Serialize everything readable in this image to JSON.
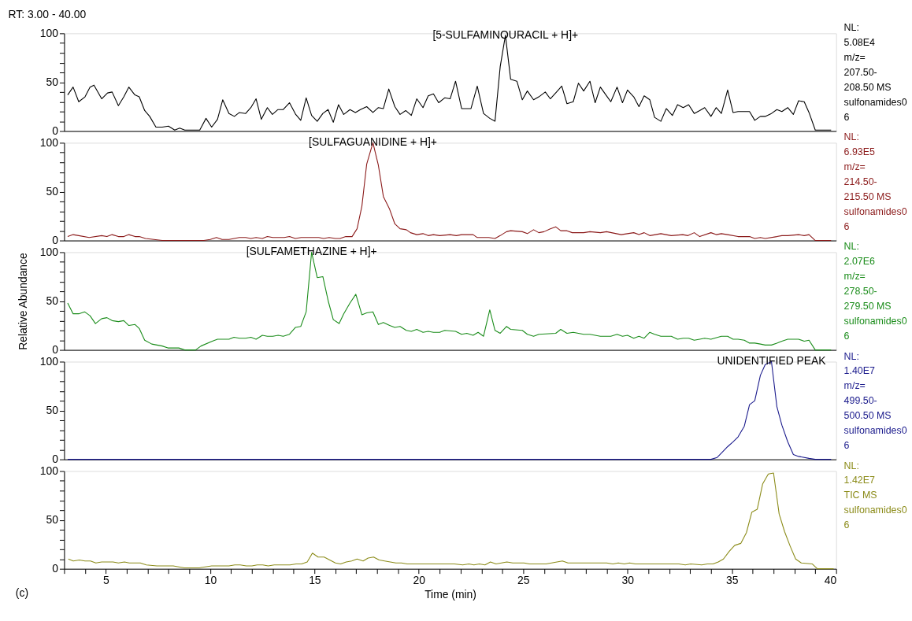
{
  "chart_data": [
    {
      "type": "line",
      "title": "RT: 3.00 - 40.00",
      "xlim": [
        3,
        40
      ],
      "ylim": [
        0,
        100
      ],
      "tick_labels": "y",
      "yticks": [
        0,
        {
          "value": 10,
          "label": null
        },
        {
          "value": 20,
          "label": null
        },
        {
          "value": 30,
          "label": null
        },
        {
          "value": 40,
          "label": null
        },
        50,
        {
          "value": 60,
          "label": null
        },
        {
          "value": 70,
          "label": null
        },
        {
          "value": 80,
          "label": null
        },
        {
          "value": 90,
          "label": null
        },
        100
      ],
      "annotations": [
        {
          "text": "[5-SULFAMINOURACIL + H]+",
          "x": 24.15,
          "y": 98
        },
        "NL:",
        "5.08E4",
        "m/z=",
        "207.50-",
        "208.50  MS",
        "sulfonamides0",
        "6"
      ],
      "series": [
        {
          "color": "#000000",
          "x": [
            3.17,
            3.43,
            3.7,
            4.0,
            4.24,
            4.43,
            4.8,
            5.08,
            5.3,
            5.6,
            5.86,
            6.1,
            6.39,
            6.6,
            6.86,
            7.1,
            7.4,
            7.7,
            8.0,
            8.3,
            8.54,
            8.78,
            9.5,
            9.8,
            10.07,
            10.35,
            10.6,
            10.9,
            11.16,
            11.4,
            11.7,
            11.95,
            12.2,
            12.45,
            12.74,
            12.98,
            13.25,
            13.5,
            13.8,
            14.1,
            14.34,
            14.6,
            14.86,
            15.13,
            15.4,
            15.65,
            15.9,
            16.15,
            16.4,
            16.7,
            16.96,
            17.2,
            17.5,
            17.8,
            18.06,
            18.3,
            18.56,
            18.85,
            19.1,
            19.37,
            19.64,
            19.9,
            20.2,
            20.45,
            20.7,
            20.95,
            21.24,
            21.5,
            21.76,
            22.05,
            22.5,
            22.8,
            23.1,
            23.4,
            23.65,
            23.9,
            24.15,
            24.4,
            24.7,
            24.96,
            25.2,
            25.5,
            25.75,
            26.06,
            26.3,
            26.6,
            26.85,
            27.1,
            27.4,
            27.65,
            27.9,
            28.2,
            28.45,
            28.7,
            29.0,
            29.2,
            29.5,
            29.76,
            30.0,
            30.3,
            30.55,
            30.8,
            31.07,
            31.3,
            31.6,
            31.86,
            32.15,
            32.4,
            32.67,
            32.93,
            33.2,
            33.46,
            33.7,
            34.0,
            34.25,
            34.5,
            34.8,
            35.06,
            35.3,
            35.85,
            36.1,
            36.37,
            36.6,
            36.9,
            37.16,
            37.4,
            37.68,
            37.95,
            38.2,
            38.47,
            38.7,
            39.0,
            39.6,
            39.76
          ],
          "values": [
            37,
            45,
            30,
            35,
            45,
            47,
            33,
            39,
            40,
            26,
            35,
            45,
            37,
            35,
            21,
            15,
            4,
            4,
            5,
            1,
            3,
            1,
            1,
            13,
            4,
            12,
            32,
            18,
            15,
            19,
            18,
            24,
            33,
            12,
            24,
            17,
            22,
            22,
            29,
            17,
            11,
            34,
            16,
            10,
            18,
            22,
            9,
            27,
            17,
            22,
            19,
            22,
            25,
            19,
            24,
            23,
            43,
            25,
            17,
            21,
            16,
            33,
            24,
            36,
            38,
            29,
            34,
            33,
            51,
            23,
            23,
            46,
            18,
            13,
            10,
            66,
            98,
            53,
            51,
            32,
            41,
            32,
            35,
            40,
            33,
            40,
            46,
            28,
            30,
            49,
            41,
            51,
            29,
            45,
            36,
            30,
            45,
            29,
            42,
            35,
            25,
            36,
            32,
            14,
            10,
            23,
            16,
            27,
            24,
            27,
            18,
            21,
            24,
            15,
            24,
            18,
            42,
            19,
            20,
            20,
            11,
            15,
            15,
            18,
            22,
            20,
            24,
            17,
            31,
            30,
            19,
            1,
            1,
            1
          ]
        }
      ]
    },
    {
      "type": "line",
      "xlim": [
        3,
        40
      ],
      "ylim": [
        0,
        100
      ],
      "tick_labels": "y",
      "yticks": [
        0,
        {
          "value": 10,
          "label": null
        },
        {
          "value": 20,
          "label": null
        },
        {
          "value": 30,
          "label": null
        },
        {
          "value": 40,
          "label": null
        },
        50,
        {
          "value": 60,
          "label": null
        },
        {
          "value": 70,
          "label": null
        },
        {
          "value": 80,
          "label": null
        },
        {
          "value": 90,
          "label": null
        },
        100
      ],
      "annotations": [
        {
          "text": "[SULFAGUANIDINE + H]+",
          "x": 17.8,
          "y": 100
        },
        "NL:",
        "6.93E5",
        "m/z=",
        "214.50-",
        "215.50  MS",
        "sulfonamides0",
        "6"
      ],
      "series": [
        {
          "color": "#8b1a1a",
          "x": [
            3.17,
            3.43,
            3.7,
            4.2,
            4.8,
            5.05,
            5.3,
            5.6,
            5.86,
            6.1,
            6.4,
            6.6,
            6.9,
            7.3,
            7.7,
            9.7,
            10.0,
            10.3,
            10.57,
            10.9,
            11.4,
            11.7,
            11.95,
            12.2,
            12.5,
            12.74,
            13.0,
            13.55,
            13.8,
            14.08,
            14.36,
            15.2,
            15.44,
            15.7,
            16.0,
            16.22,
            16.5,
            16.8,
            17.04,
            17.27,
            17.5,
            17.8,
            18.06,
            18.3,
            18.6,
            18.85,
            19.1,
            19.4,
            19.6,
            19.9,
            20.2,
            20.45,
            20.7,
            21.0,
            21.5,
            21.8,
            22.05,
            22.6,
            22.8,
            23.35,
            23.65,
            23.9,
            24.2,
            24.4,
            24.96,
            25.2,
            25.5,
            25.75,
            26.0,
            26.3,
            26.56,
            26.8,
            27.1,
            27.35,
            27.9,
            28.2,
            28.7,
            29.0,
            29.7,
            30.3,
            30.55,
            30.8,
            31.07,
            31.6,
            32.1,
            32.65,
            32.9,
            33.2,
            33.46,
            34.0,
            34.25,
            34.5,
            34.8,
            35.3,
            35.85,
            36.1,
            36.37,
            36.6,
            37.16,
            37.4,
            37.68,
            38.2,
            38.47,
            38.7,
            39.0,
            39.76
          ],
          "values": [
            4,
            6,
            5,
            3,
            5,
            4,
            6,
            4,
            4,
            6,
            4,
            4,
            2,
            1,
            0,
            0,
            1,
            3,
            1,
            1,
            3,
            3,
            2,
            3,
            2,
            4,
            3,
            3,
            4,
            2,
            3,
            3,
            2,
            3,
            2,
            2,
            4,
            4,
            12,
            35,
            78,
            100,
            77,
            45,
            32,
            17,
            12,
            11,
            8,
            6,
            7,
            5,
            6,
            5,
            6,
            5,
            6,
            6,
            3,
            3,
            2,
            5,
            9,
            10,
            9,
            7,
            11,
            8,
            9,
            12,
            14,
            10,
            10,
            8,
            8,
            9,
            8,
            9,
            6,
            8,
            6,
            8,
            5,
            7,
            5,
            6,
            5,
            8,
            4,
            8,
            6,
            7,
            6,
            4,
            4,
            2,
            3,
            2,
            4,
            5,
            5,
            6,
            5,
            6,
            0,
            0
          ]
        }
      ]
    },
    {
      "type": "line",
      "xlim": [
        3,
        40
      ],
      "ylim": [
        0,
        100
      ],
      "tick_labels": "y",
      "ylabel": "Relative Abundance",
      "yticks": [
        0,
        {
          "value": 10,
          "label": null
        },
        {
          "value": 20,
          "label": null
        },
        {
          "value": 30,
          "label": null
        },
        {
          "value": 40,
          "label": null
        },
        50,
        {
          "value": 60,
          "label": null
        },
        {
          "value": 70,
          "label": null
        },
        {
          "value": 80,
          "label": null
        },
        {
          "value": 90,
          "label": null
        },
        100
      ],
      "annotations": [
        {
          "text": "[SULFAMETHAZINE + H]+",
          "x": 14.86,
          "y": 100
        },
        "NL:",
        "2.07E6",
        "m/z=",
        "278.50-",
        "279.50  MS",
        "sulfonamides0",
        "6"
      ],
      "series": [
        {
          "color": "#1a8c1a",
          "x": [
            3.17,
            3.43,
            3.7,
            3.98,
            4.24,
            4.5,
            4.8,
            5.05,
            5.3,
            5.6,
            5.86,
            6.1,
            6.4,
            6.6,
            6.86,
            7.2,
            7.7,
            7.97,
            8.5,
            8.78,
            9.3,
            9.56,
            10.1,
            10.35,
            10.9,
            11.14,
            11.4,
            11.7,
            11.95,
            12.2,
            12.5,
            12.74,
            13.0,
            13.26,
            13.5,
            13.8,
            14.08,
            14.34,
            14.6,
            14.86,
            15.13,
            15.4,
            15.67,
            15.9,
            16.18,
            16.4,
            16.7,
            16.98,
            17.27,
            17.5,
            17.8,
            18.06,
            18.3,
            18.6,
            18.85,
            19.1,
            19.4,
            19.64,
            19.9,
            20.2,
            20.45,
            20.7,
            21.0,
            21.24,
            21.76,
            22.05,
            22.3,
            22.6,
            22.84,
            23.1,
            23.4,
            23.65,
            23.9,
            24.2,
            24.4,
            24.96,
            25.2,
            25.5,
            25.75,
            26.56,
            26.8,
            27.1,
            27.4,
            27.9,
            28.2,
            28.7,
            29.2,
            29.5,
            29.76,
            30.0,
            30.3,
            30.55,
            30.8,
            31.07,
            31.3,
            31.6,
            32.1,
            32.4,
            32.67,
            32.93,
            33.2,
            33.46,
            33.7,
            34.0,
            34.5,
            34.8,
            35.06,
            35.3,
            35.6,
            35.85,
            36.1,
            36.37,
            36.6,
            36.9,
            37.16,
            37.4,
            37.68,
            38.2,
            38.47,
            38.7,
            39.0,
            39.76
          ],
          "values": [
            48,
            37,
            37,
            39,
            35,
            27,
            32,
            33,
            30,
            29,
            30,
            25,
            26,
            22,
            10,
            6,
            4,
            2,
            2,
            0,
            0,
            4,
            9,
            11,
            11,
            13,
            12,
            12,
            13,
            11,
            15,
            14,
            14,
            15,
            14,
            16,
            23,
            24,
            39,
            100,
            74,
            75,
            49,
            31,
            27,
            37,
            48,
            57,
            36,
            38,
            39,
            26,
            28,
            25,
            23,
            24,
            20,
            19,
            21,
            18,
            19,
            18,
            18,
            20,
            19,
            16,
            17,
            15,
            18,
            14,
            41,
            20,
            17,
            24,
            21,
            20,
            16,
            14,
            16,
            17,
            21,
            17,
            18,
            16,
            16,
            14,
            14,
            16,
            14,
            15,
            12,
            14,
            12,
            18,
            16,
            14,
            14,
            11,
            12,
            12,
            10,
            11,
            12,
            11,
            14,
            14,
            11,
            11,
            10,
            7,
            7,
            6,
            5,
            5,
            7,
            9,
            11,
            11,
            9,
            10,
            0,
            0
          ]
        }
      ]
    },
    {
      "type": "line",
      "xlim": [
        3,
        40
      ],
      "ylim": [
        0,
        100
      ],
      "tick_labels": "y",
      "yticks": [
        0,
        {
          "value": 10,
          "label": null
        },
        {
          "value": 20,
          "label": null
        },
        {
          "value": 30,
          "label": null
        },
        {
          "value": 40,
          "label": null
        },
        50,
        {
          "value": 60,
          "label": null
        },
        {
          "value": 70,
          "label": null
        },
        {
          "value": 80,
          "label": null
        },
        {
          "value": 90,
          "label": null
        },
        100
      ],
      "annotations": [
        {
          "text": "UNIDENTIFIED PEAK",
          "x": 36.9,
          "y": 100
        },
        "NL:",
        "1.40E7",
        "m/z=",
        "499.50-",
        "500.50  MS",
        "sulfonamides0",
        "6"
      ],
      "series": [
        {
          "color": "#1a1a8c",
          "x": [
            3.17,
            34.0,
            34.3,
            34.53,
            34.8,
            35.06,
            35.3,
            35.6,
            35.85,
            36.1,
            36.37,
            36.6,
            36.9,
            37.16,
            37.4,
            37.68,
            37.95,
            38.2,
            38.7,
            39.0,
            39.76
          ],
          "values": [
            0,
            0,
            2,
            7,
            13,
            18,
            23,
            34,
            56,
            60,
            86,
            97,
            100,
            54,
            35,
            18,
            5,
            3,
            1,
            0,
            0
          ]
        }
      ]
    },
    {
      "type": "line",
      "xlim": [
        3,
        40
      ],
      "ylim": [
        0,
        100
      ],
      "xlabel": "Time (min)",
      "xticks": [
        {
          "value": 3,
          "label": null
        },
        {
          "value": 4,
          "label": null
        },
        5,
        {
          "value": 6,
          "label": null
        },
        {
          "value": 7,
          "label": null
        },
        {
          "value": 8,
          "label": null
        },
        {
          "value": 9,
          "label": null
        },
        10,
        {
          "value": 11,
          "label": null
        },
        {
          "value": 12,
          "label": null
        },
        {
          "value": 13,
          "label": null
        },
        {
          "value": 14,
          "label": null
        },
        15,
        {
          "value": 16,
          "label": null
        },
        {
          "value": 17,
          "label": null
        },
        {
          "value": 18,
          "label": null
        },
        {
          "value": 19,
          "label": null
        },
        20,
        {
          "value": 21,
          "label": null
        },
        {
          "value": 22,
          "label": null
        },
        {
          "value": 23,
          "label": null
        },
        {
          "value": 24,
          "label": null
        },
        25,
        {
          "value": 26,
          "label": null
        },
        {
          "value": 27,
          "label": null
        },
        {
          "value": 28,
          "label": null
        },
        {
          "value": 29,
          "label": null
        },
        30,
        {
          "value": 31,
          "label": null
        },
        {
          "value": 32,
          "label": null
        },
        {
          "value": 33,
          "label": null
        },
        {
          "value": 34,
          "label": null
        },
        35,
        {
          "value": 36,
          "label": null
        },
        {
          "value": 37,
          "label": null
        },
        {
          "value": 38,
          "label": null
        },
        {
          "value": 39,
          "label": null
        },
        40
      ],
      "yticks": [
        0,
        {
          "value": 10,
          "label": null
        },
        {
          "value": 20,
          "label": null
        },
        {
          "value": 30,
          "label": null
        },
        {
          "value": 40,
          "label": null
        },
        50,
        {
          "value": 60,
          "label": null
        },
        {
          "value": 70,
          "label": null
        },
        {
          "value": 80,
          "label": null
        },
        {
          "value": 90,
          "label": null
        },
        100
      ],
      "annotations": [
        "NL:",
        "1.42E7",
        "TIC  MS",
        "sulfonamides0",
        "6",
        "(c)"
      ],
      "series": [
        {
          "color": "#8c8c1a",
          "x": [
            3.2,
            3.44,
            3.73,
            4.0,
            4.26,
            4.52,
            4.8,
            5.34,
            5.6,
            5.89,
            6.12,
            6.65,
            6.94,
            7.44,
            8.23,
            8.76,
            9.48,
            10.07,
            10.9,
            11.18,
            11.44,
            11.73,
            12.0,
            12.25,
            12.52,
            12.78,
            13.07,
            13.83,
            14.12,
            14.38,
            14.65,
            14.9,
            15.17,
            15.46,
            15.73,
            16.0,
            16.25,
            16.52,
            16.78,
            17.04,
            17.33,
            17.57,
            17.83,
            18.1,
            18.36,
            18.9,
            19.17,
            19.44,
            21.7,
            22.1,
            22.4,
            22.64,
            22.9,
            23.17,
            23.43,
            23.7,
            24.22,
            24.5,
            25.04,
            25.3,
            26.1,
            26.88,
            27.15,
            29.0,
            29.3,
            29.56,
            29.85,
            30.1,
            30.38,
            32.46,
            32.77,
            33.03,
            33.56,
            33.83,
            34.1,
            34.35,
            34.6,
            34.88,
            35.14,
            35.43,
            35.7,
            35.96,
            36.22,
            36.48,
            36.75,
            37.0,
            37.27,
            37.53,
            37.8,
            38.06,
            38.33,
            38.85,
            39.1,
            39.88
          ],
          "values": [
            10,
            8,
            9,
            8,
            8,
            6,
            7,
            7,
            6,
            7,
            6,
            6,
            4,
            3,
            3,
            1,
            1,
            3,
            3,
            4,
            4,
            3,
            3,
            4,
            4,
            3,
            4,
            4,
            5,
            5,
            7,
            16,
            12,
            12,
            9,
            6,
            5,
            7,
            8,
            10,
            8,
            11,
            12,
            9,
            8,
            6,
            6,
            5,
            5,
            4,
            5,
            4,
            5,
            4,
            7,
            5,
            7,
            6,
            6,
            5,
            5,
            8,
            6,
            6,
            5,
            6,
            5,
            6,
            5,
            5,
            4,
            5,
            4,
            5,
            5,
            7,
            10,
            18,
            24,
            26,
            37,
            58,
            61,
            87,
            97,
            98,
            56,
            38,
            23,
            10,
            6,
            5,
            0,
            0
          ]
        }
      ]
    }
  ]
}
